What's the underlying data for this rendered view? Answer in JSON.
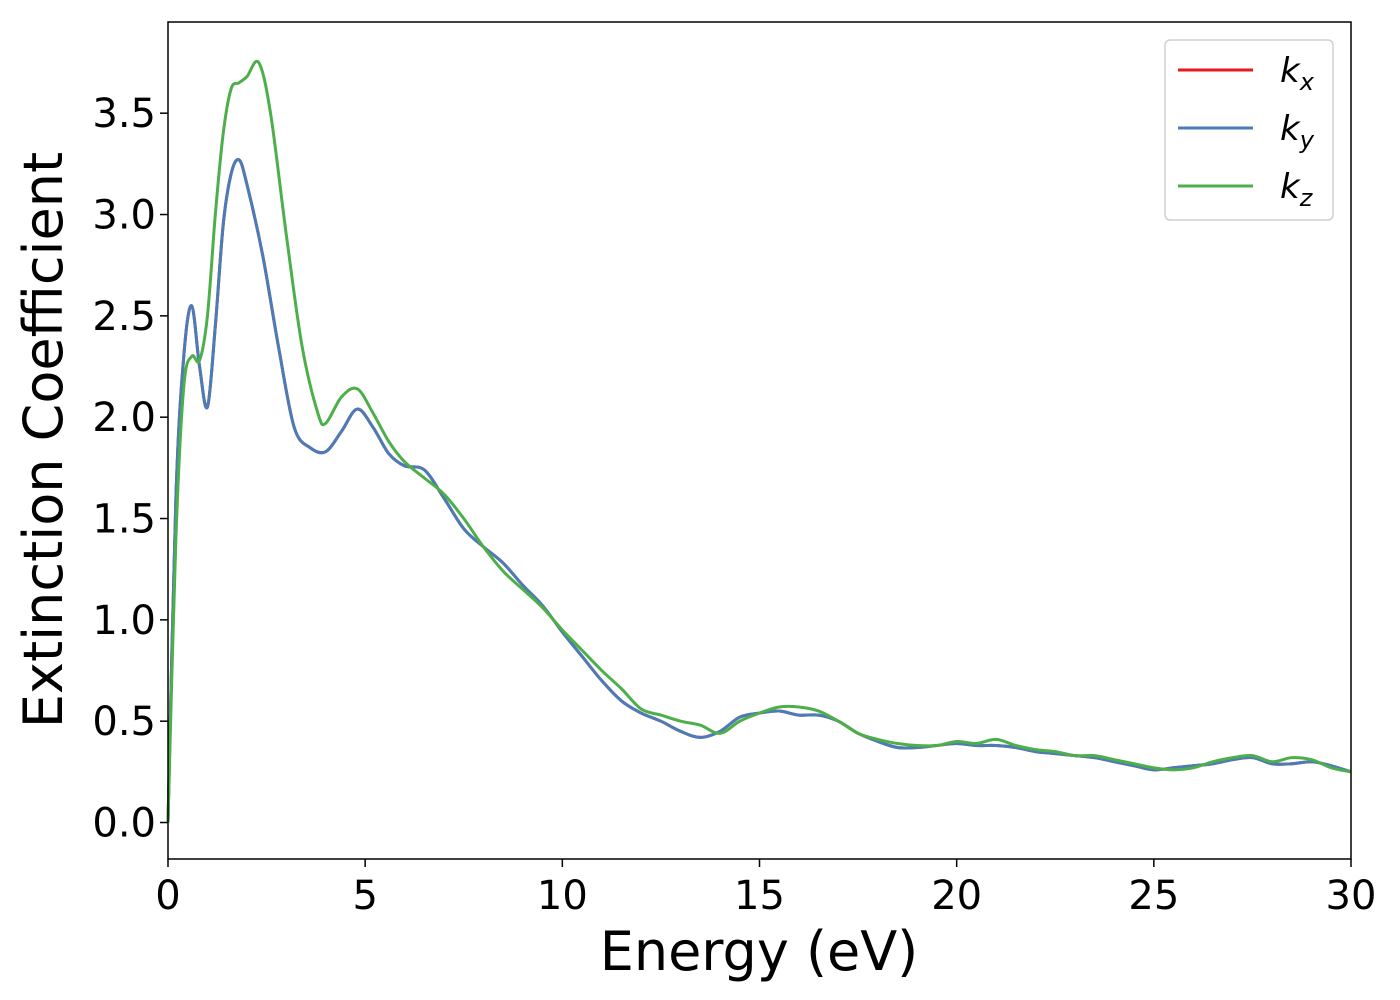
{
  "chart_data": {
    "type": "line",
    "xlabel": "Energy (eV)",
    "ylabel": "Extinction Coefficient",
    "xlim": [
      0,
      30
    ],
    "ylim": [
      -0.18,
      3.95
    ],
    "xticks": [
      0,
      5,
      10,
      15,
      20,
      25,
      30
    ],
    "yticks": [
      0.0,
      0.5,
      1.0,
      1.5,
      2.0,
      2.5,
      3.0,
      3.5
    ],
    "xtick_labels": [
      "0",
      "5",
      "10",
      "15",
      "20",
      "25",
      "30"
    ],
    "ytick_labels": [
      "0.0",
      "0.5",
      "1.0",
      "1.5",
      "2.0",
      "2.5",
      "3.0",
      "3.5"
    ],
    "grid": false,
    "legend_position": "top-right",
    "series": [
      {
        "name": "k_x",
        "label_main": "k",
        "label_sub": "x",
        "color": "#e41a1c",
        "x": [
          0,
          0.2,
          0.4,
          0.6,
          0.8,
          1.0,
          1.2,
          1.4,
          1.6,
          1.8,
          2.0,
          2.4,
          2.8,
          3.2,
          3.6,
          4.0,
          4.4,
          4.8,
          5.2,
          5.6,
          6.0,
          6.5,
          7.0,
          7.5,
          8.0,
          8.5,
          9.0,
          9.5,
          10.0,
          10.5,
          11.0,
          11.5,
          12.0,
          12.5,
          13.0,
          13.5,
          14.0,
          14.5,
          15.0,
          15.5,
          16.0,
          16.5,
          17.0,
          17.5,
          18.0,
          18.5,
          19.0,
          19.5,
          20.0,
          20.5,
          21.0,
          21.5,
          22.0,
          22.5,
          23.0,
          23.5,
          24.0,
          24.5,
          25.0,
          25.5,
          26.0,
          26.5,
          27.0,
          27.5,
          28.0,
          28.5,
          29.0,
          29.5,
          30.0
        ],
        "y": [
          0.0,
          1.6,
          2.3,
          2.55,
          2.25,
          2.05,
          2.45,
          2.95,
          3.2,
          3.27,
          3.15,
          2.8,
          2.35,
          1.95,
          1.85,
          1.83,
          1.93,
          2.04,
          1.95,
          1.82,
          1.76,
          1.74,
          1.6,
          1.45,
          1.36,
          1.28,
          1.17,
          1.07,
          0.94,
          0.82,
          0.7,
          0.6,
          0.54,
          0.5,
          0.45,
          0.42,
          0.45,
          0.52,
          0.54,
          0.55,
          0.53,
          0.53,
          0.5,
          0.44,
          0.4,
          0.37,
          0.37,
          0.38,
          0.39,
          0.38,
          0.38,
          0.37,
          0.35,
          0.34,
          0.33,
          0.32,
          0.3,
          0.28,
          0.26,
          0.27,
          0.28,
          0.29,
          0.31,
          0.32,
          0.29,
          0.29,
          0.3,
          0.28,
          0.25
        ]
      },
      {
        "name": "k_y",
        "label_main": "k",
        "label_sub": "y",
        "color": "#4a7db8",
        "x": [
          0,
          0.2,
          0.4,
          0.6,
          0.8,
          1.0,
          1.2,
          1.4,
          1.6,
          1.8,
          2.0,
          2.4,
          2.8,
          3.2,
          3.6,
          4.0,
          4.4,
          4.8,
          5.2,
          5.6,
          6.0,
          6.5,
          7.0,
          7.5,
          8.0,
          8.5,
          9.0,
          9.5,
          10.0,
          10.5,
          11.0,
          11.5,
          12.0,
          12.5,
          13.0,
          13.5,
          14.0,
          14.5,
          15.0,
          15.5,
          16.0,
          16.5,
          17.0,
          17.5,
          18.0,
          18.5,
          19.0,
          19.5,
          20.0,
          20.5,
          21.0,
          21.5,
          22.0,
          22.5,
          23.0,
          23.5,
          24.0,
          24.5,
          25.0,
          25.5,
          26.0,
          26.5,
          27.0,
          27.5,
          28.0,
          28.5,
          29.0,
          29.5,
          30.0
        ],
        "y": [
          0.0,
          1.6,
          2.3,
          2.55,
          2.25,
          2.05,
          2.45,
          2.95,
          3.2,
          3.27,
          3.15,
          2.8,
          2.35,
          1.95,
          1.85,
          1.83,
          1.93,
          2.04,
          1.95,
          1.82,
          1.76,
          1.74,
          1.6,
          1.45,
          1.36,
          1.28,
          1.17,
          1.07,
          0.94,
          0.82,
          0.7,
          0.6,
          0.54,
          0.5,
          0.45,
          0.42,
          0.45,
          0.52,
          0.54,
          0.55,
          0.53,
          0.53,
          0.5,
          0.44,
          0.4,
          0.37,
          0.37,
          0.38,
          0.39,
          0.38,
          0.38,
          0.37,
          0.35,
          0.34,
          0.33,
          0.32,
          0.3,
          0.28,
          0.26,
          0.27,
          0.28,
          0.29,
          0.31,
          0.32,
          0.29,
          0.29,
          0.3,
          0.28,
          0.25
        ]
      },
      {
        "name": "k_z",
        "label_main": "k",
        "label_sub": "z",
        "color": "#4daf4a",
        "x": [
          0,
          0.2,
          0.4,
          0.6,
          0.8,
          1.0,
          1.2,
          1.4,
          1.6,
          1.8,
          2.0,
          2.3,
          2.6,
          3.0,
          3.4,
          3.8,
          4.0,
          4.4,
          4.8,
          5.2,
          5.6,
          6.0,
          6.5,
          7.0,
          7.5,
          8.0,
          8.5,
          9.0,
          9.5,
          10.0,
          10.5,
          11.0,
          11.5,
          12.0,
          12.5,
          13.0,
          13.5,
          14.0,
          14.5,
          15.0,
          15.5,
          16.0,
          16.5,
          17.0,
          17.5,
          18.0,
          18.5,
          19.0,
          19.5,
          20.0,
          20.5,
          21.0,
          21.5,
          22.0,
          22.5,
          23.0,
          23.5,
          24.0,
          24.5,
          25.0,
          25.5,
          26.0,
          26.5,
          27.0,
          27.5,
          28.0,
          28.5,
          29.0,
          29.5,
          30.0
        ],
        "y": [
          0.0,
          1.4,
          2.15,
          2.3,
          2.28,
          2.5,
          3.0,
          3.4,
          3.62,
          3.65,
          3.68,
          3.75,
          3.5,
          2.9,
          2.35,
          2.02,
          1.97,
          2.1,
          2.14,
          2.02,
          1.88,
          1.78,
          1.7,
          1.62,
          1.5,
          1.36,
          1.24,
          1.15,
          1.06,
          0.95,
          0.85,
          0.75,
          0.66,
          0.56,
          0.53,
          0.5,
          0.48,
          0.44,
          0.5,
          0.54,
          0.57,
          0.57,
          0.55,
          0.5,
          0.44,
          0.41,
          0.39,
          0.38,
          0.38,
          0.4,
          0.39,
          0.41,
          0.38,
          0.36,
          0.35,
          0.33,
          0.33,
          0.31,
          0.29,
          0.27,
          0.26,
          0.27,
          0.3,
          0.32,
          0.33,
          0.3,
          0.32,
          0.31,
          0.27,
          0.25
        ]
      }
    ]
  }
}
